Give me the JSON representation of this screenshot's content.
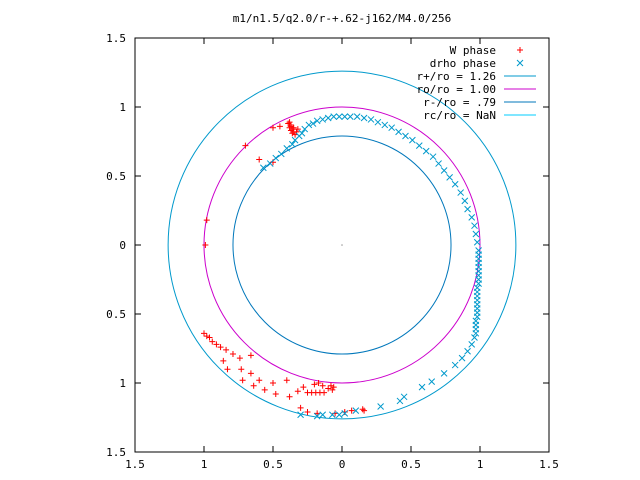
{
  "chart_data": {
    "type": "scatter",
    "title": "m1/n1.5/q2.0/r-+.62-j162/M4.0/256",
    "xlabel": "",
    "ylabel": "",
    "xlim": [
      -1.5,
      1.5
    ],
    "ylim": [
      -1.5,
      1.5
    ],
    "x_ticks": [
      -1.5,
      -1,
      -0.5,
      0,
      0.5,
      1,
      1.5
    ],
    "x_tick_labels": [
      "1.5",
      "1",
      "0.5",
      "0",
      "0.5",
      "1",
      "1.5"
    ],
    "y_ticks": [
      1.5,
      1,
      0.5,
      0,
      -0.5,
      -1,
      -1.5
    ],
    "y_tick_labels": [
      "1.5",
      "1",
      "0.5",
      "0",
      "0.5",
      "1",
      "1.5"
    ],
    "grid": false,
    "legend_position": "top-right",
    "center_marker": [
      0,
      0
    ],
    "series": [
      {
        "name": "W phase",
        "kind": "points",
        "marker": "plus",
        "color": "#ff0000",
        "points": [
          [
            -0.39,
            0.88
          ],
          [
            -0.38,
            0.89
          ],
          [
            -0.37,
            0.87
          ],
          [
            -0.38,
            0.85
          ],
          [
            -0.37,
            0.83
          ],
          [
            -0.36,
            0.84
          ],
          [
            -0.37,
            0.86
          ],
          [
            -0.35,
            0.82
          ],
          [
            -0.36,
            0.81
          ],
          [
            -0.34,
            0.8
          ],
          [
            -0.33,
            0.82
          ],
          [
            -0.32,
            0.84
          ],
          [
            -0.35,
            0.85
          ],
          [
            -0.45,
            0.86
          ],
          [
            -0.5,
            0.85
          ],
          [
            -0.7,
            0.72
          ],
          [
            -0.6,
            0.62
          ],
          [
            -0.5,
            0.6
          ],
          [
            -0.98,
            0.18
          ],
          [
            -0.99,
            0.0
          ],
          [
            -1.0,
            -0.64
          ],
          [
            -0.98,
            -0.66
          ],
          [
            -0.96,
            -0.67
          ],
          [
            -0.94,
            -0.7
          ],
          [
            -0.91,
            -0.72
          ],
          [
            -0.88,
            -0.74
          ],
          [
            -0.84,
            -0.76
          ],
          [
            -0.79,
            -0.79
          ],
          [
            -0.74,
            -0.82
          ],
          [
            -0.66,
            -0.8
          ],
          [
            -0.86,
            -0.84
          ],
          [
            -0.83,
            -0.9
          ],
          [
            -0.73,
            -0.9
          ],
          [
            -0.66,
            -0.93
          ],
          [
            -0.6,
            -0.98
          ],
          [
            -0.72,
            -0.98
          ],
          [
            -0.64,
            -1.02
          ],
          [
            -0.56,
            -1.05
          ],
          [
            -0.5,
            -1.0
          ],
          [
            -0.48,
            -1.08
          ],
          [
            -0.4,
            -0.98
          ],
          [
            -0.38,
            -1.1
          ],
          [
            -0.32,
            -1.06
          ],
          [
            -0.28,
            -1.03
          ],
          [
            -0.25,
            -1.07
          ],
          [
            -0.22,
            -1.07
          ],
          [
            -0.19,
            -1.07
          ],
          [
            -0.16,
            -1.07
          ],
          [
            -0.13,
            -1.07
          ],
          [
            -0.2,
            -1.01
          ],
          [
            -0.17,
            -1.0
          ],
          [
            -0.14,
            -1.02
          ],
          [
            -0.1,
            -1.04
          ],
          [
            -0.07,
            -1.05
          ],
          [
            -0.06,
            -1.03
          ],
          [
            -0.08,
            -1.02
          ],
          [
            -0.3,
            -1.18
          ],
          [
            -0.25,
            -1.21
          ],
          [
            -0.18,
            -1.22
          ],
          [
            -0.05,
            -1.22
          ],
          [
            0.02,
            -1.21
          ],
          [
            0.07,
            -1.2
          ],
          [
            0.15,
            -1.19
          ],
          [
            0.16,
            -1.2
          ]
        ]
      },
      {
        "name": "drho phase",
        "kind": "points",
        "marker": "cross",
        "color": "#0099cc",
        "points": [
          [
            -0.57,
            0.56
          ],
          [
            -0.52,
            0.59
          ],
          [
            -0.48,
            0.63
          ],
          [
            -0.44,
            0.66
          ],
          [
            -0.4,
            0.7
          ],
          [
            -0.36,
            0.73
          ],
          [
            -0.34,
            0.76
          ],
          [
            -0.31,
            0.79
          ],
          [
            -0.29,
            0.81
          ],
          [
            -0.27,
            0.84
          ],
          [
            -0.24,
            0.87
          ],
          [
            -0.21,
            0.88
          ],
          [
            -0.18,
            0.9
          ],
          [
            -0.14,
            0.91
          ],
          [
            -0.1,
            0.92
          ],
          [
            -0.06,
            0.93
          ],
          [
            -0.02,
            0.93
          ],
          [
            0.02,
            0.93
          ],
          [
            0.06,
            0.93
          ],
          [
            0.11,
            0.93
          ],
          [
            0.16,
            0.92
          ],
          [
            0.21,
            0.91
          ],
          [
            0.26,
            0.89
          ],
          [
            0.31,
            0.87
          ],
          [
            0.36,
            0.85
          ],
          [
            0.41,
            0.82
          ],
          [
            0.46,
            0.79
          ],
          [
            0.51,
            0.76
          ],
          [
            0.56,
            0.72
          ],
          [
            0.61,
            0.68
          ],
          [
            0.66,
            0.64
          ],
          [
            0.7,
            0.59
          ],
          [
            0.74,
            0.54
          ],
          [
            0.78,
            0.49
          ],
          [
            0.82,
            0.44
          ],
          [
            0.86,
            0.38
          ],
          [
            0.89,
            0.32
          ],
          [
            0.91,
            0.26
          ],
          [
            0.94,
            0.2
          ],
          [
            0.96,
            0.14
          ],
          [
            0.97,
            0.08
          ],
          [
            0.98,
            0.02
          ],
          [
            0.99,
            -0.04
          ],
          [
            0.99,
            -0.07
          ],
          [
            0.99,
            -0.1
          ],
          [
            0.99,
            -0.13
          ],
          [
            0.99,
            -0.16
          ],
          [
            0.99,
            -0.19
          ],
          [
            0.99,
            -0.22
          ],
          [
            0.99,
            -0.25
          ],
          [
            0.99,
            -0.28
          ],
          [
            0.98,
            -0.31
          ],
          [
            0.98,
            -0.34
          ],
          [
            0.98,
            -0.37
          ],
          [
            0.98,
            -0.4
          ],
          [
            0.98,
            -0.43
          ],
          [
            0.98,
            -0.46
          ],
          [
            0.98,
            -0.49
          ],
          [
            0.98,
            -0.52
          ],
          [
            0.97,
            -0.55
          ],
          [
            0.97,
            -0.58
          ],
          [
            0.97,
            -0.61
          ],
          [
            0.97,
            -0.64
          ],
          [
            0.96,
            -0.67
          ],
          [
            0.94,
            -0.72
          ],
          [
            0.91,
            -0.77
          ],
          [
            0.87,
            -0.82
          ],
          [
            0.82,
            -0.87
          ],
          [
            0.74,
            -0.93
          ],
          [
            0.65,
            -0.99
          ],
          [
            0.58,
            -1.03
          ],
          [
            0.45,
            -1.1
          ],
          [
            0.42,
            -1.13
          ],
          [
            0.28,
            -1.17
          ],
          [
            0.1,
            -1.2
          ],
          [
            0.02,
            -1.22
          ],
          [
            -0.02,
            -1.23
          ],
          [
            -0.07,
            -1.23
          ],
          [
            -0.14,
            -1.23
          ],
          [
            -0.18,
            -1.24
          ],
          [
            -0.3,
            -1.23
          ]
        ]
      },
      {
        "name": "r+/ro = 1.26",
        "kind": "circle",
        "radius": 1.26,
        "color": "#0099cc"
      },
      {
        "name": "ro/ro = 1.00",
        "kind": "circle",
        "radius": 1.0,
        "color": "#cc00cc"
      },
      {
        "name": "r-/ro = .79",
        "kind": "circle",
        "radius": 0.79,
        "color": "#0077bb"
      },
      {
        "name": "rc/ro = NaN",
        "kind": "circle",
        "radius": null,
        "color": "#00ccff"
      }
    ]
  }
}
